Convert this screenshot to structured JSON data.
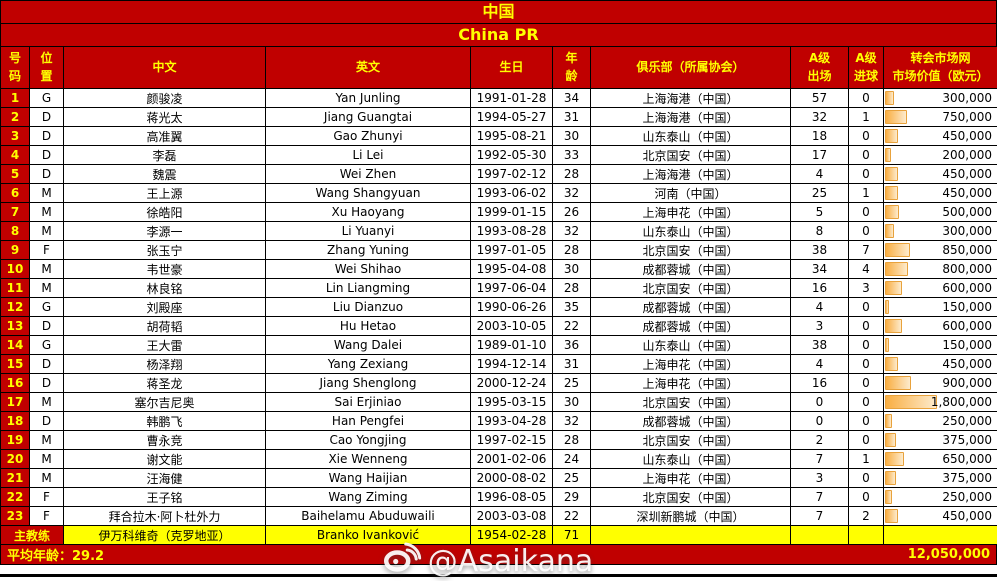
{
  "title": {
    "cn": "中国",
    "en": "China PR"
  },
  "header": {
    "no": "号\n码",
    "pos": "位\n置",
    "cn": "中文",
    "en": "英文",
    "birth": "生日",
    "age": "年\n龄",
    "club": "俱乐部（所属协会）",
    "caps": "A级\n出场",
    "goals": "A级\n进球",
    "value": "转会市场网\n市场价值（欧元）"
  },
  "value_bar_max": 1800000,
  "colors": {
    "red": "#C00000",
    "yellow": "#FFFF00",
    "bar_fill": "#F9AE42",
    "bar_border": "#E8A23C"
  },
  "players": [
    {
      "no": "1",
      "pos": "G",
      "cn": "颜骏凌",
      "en": "Yan Junling",
      "birth": "1991-01-28",
      "age": "34",
      "club": "上海海港（中国）",
      "caps": "57",
      "goals": "0",
      "value": "300,000",
      "value_num": 300000
    },
    {
      "no": "2",
      "pos": "D",
      "cn": "蒋光太",
      "en": "Jiang Guangtai",
      "birth": "1994-05-27",
      "age": "31",
      "club": "上海海港（中国）",
      "caps": "32",
      "goals": "1",
      "value": "750,000",
      "value_num": 750000
    },
    {
      "no": "3",
      "pos": "D",
      "cn": "高准翼",
      "en": "Gao Zhunyi",
      "birth": "1995-08-21",
      "age": "30",
      "club": "山东泰山（中国）",
      "caps": "18",
      "goals": "0",
      "value": "450,000",
      "value_num": 450000
    },
    {
      "no": "4",
      "pos": "D",
      "cn": "李磊",
      "en": "Li Lei",
      "birth": "1992-05-30",
      "age": "33",
      "club": "北京国安（中国）",
      "caps": "17",
      "goals": "0",
      "value": "200,000",
      "value_num": 200000
    },
    {
      "no": "5",
      "pos": "D",
      "cn": "魏震",
      "en": "Wei Zhen",
      "birth": "1997-02-12",
      "age": "28",
      "club": "上海海港（中国）",
      "caps": "4",
      "goals": "0",
      "value": "450,000",
      "value_num": 450000
    },
    {
      "no": "6",
      "pos": "M",
      "cn": "王上源",
      "en": "Wang Shangyuan",
      "birth": "1993-06-02",
      "age": "32",
      "club": "河南（中国）",
      "caps": "25",
      "goals": "1",
      "value": "450,000",
      "value_num": 450000
    },
    {
      "no": "7",
      "pos": "M",
      "cn": "徐皓阳",
      "en": "Xu Haoyang",
      "birth": "1999-01-15",
      "age": "26",
      "club": "上海申花（中国）",
      "caps": "5",
      "goals": "0",
      "value": "500,000",
      "value_num": 500000
    },
    {
      "no": "8",
      "pos": "M",
      "cn": "李源一",
      "en": "Li Yuanyi",
      "birth": "1993-08-28",
      "age": "32",
      "club": "山东泰山（中国）",
      "caps": "8",
      "goals": "0",
      "value": "300,000",
      "value_num": 300000
    },
    {
      "no": "9",
      "pos": "F",
      "cn": "张玉宁",
      "en": "Zhang Yuning",
      "birth": "1997-01-05",
      "age": "28",
      "club": "北京国安（中国）",
      "caps": "38",
      "goals": "7",
      "value": "850,000",
      "value_num": 850000
    },
    {
      "no": "10",
      "pos": "M",
      "cn": "韦世豪",
      "en": "Wei Shihao",
      "birth": "1995-04-08",
      "age": "30",
      "club": "成都蓉城（中国）",
      "caps": "34",
      "goals": "4",
      "value": "800,000",
      "value_num": 800000
    },
    {
      "no": "11",
      "pos": "M",
      "cn": "林良铭",
      "en": "Lin Liangming",
      "birth": "1997-06-04",
      "age": "28",
      "club": "北京国安（中国）",
      "caps": "16",
      "goals": "3",
      "value": "600,000",
      "value_num": 600000
    },
    {
      "no": "12",
      "pos": "G",
      "cn": "刘殿座",
      "en": "Liu Dianzuo",
      "birth": "1990-06-26",
      "age": "35",
      "club": "成都蓉城（中国）",
      "caps": "4",
      "goals": "0",
      "value": "150,000",
      "value_num": 150000
    },
    {
      "no": "13",
      "pos": "D",
      "cn": "胡荷韬",
      "en": "Hu Hetao",
      "birth": "2003-10-05",
      "age": "22",
      "club": "成都蓉城（中国）",
      "caps": "3",
      "goals": "0",
      "value": "600,000",
      "value_num": 600000
    },
    {
      "no": "14",
      "pos": "G",
      "cn": "王大雷",
      "en": "Wang Dalei",
      "birth": "1989-01-10",
      "age": "36",
      "club": "山东泰山（中国）",
      "caps": "38",
      "goals": "0",
      "value": "150,000",
      "value_num": 150000
    },
    {
      "no": "15",
      "pos": "D",
      "cn": "杨泽翔",
      "en": "Yang Zexiang",
      "birth": "1994-12-14",
      "age": "31",
      "club": "上海申花（中国）",
      "caps": "4",
      "goals": "0",
      "value": "450,000",
      "value_num": 450000
    },
    {
      "no": "16",
      "pos": "D",
      "cn": "蒋圣龙",
      "en": "Jiang Shenglong",
      "birth": "2000-12-24",
      "age": "25",
      "club": "上海申花（中国）",
      "caps": "16",
      "goals": "0",
      "value": "900,000",
      "value_num": 900000
    },
    {
      "no": "17",
      "pos": "M",
      "cn": "塞尔吉尼奥",
      "en": "Sai Erjiniao",
      "birth": "1995-03-15",
      "age": "30",
      "club": "北京国安（中国）",
      "caps": "0",
      "goals": "0",
      "value": "1,800,000",
      "value_num": 1800000
    },
    {
      "no": "18",
      "pos": "D",
      "cn": "韩鹏飞",
      "en": "Han Pengfei",
      "birth": "1993-04-28",
      "age": "32",
      "club": "成都蓉城（中国）",
      "caps": "0",
      "goals": "0",
      "value": "250,000",
      "value_num": 250000
    },
    {
      "no": "19",
      "pos": "M",
      "cn": "曹永竞",
      "en": "Cao Yongjing",
      "birth": "1997-02-15",
      "age": "28",
      "club": "北京国安（中国）",
      "caps": "2",
      "goals": "0",
      "value": "375,000",
      "value_num": 375000
    },
    {
      "no": "20",
      "pos": "M",
      "cn": "谢文能",
      "en": "Xie Wenneng",
      "birth": "2001-02-06",
      "age": "24",
      "club": "山东泰山（中国）",
      "caps": "7",
      "goals": "1",
      "value": "650,000",
      "value_num": 650000
    },
    {
      "no": "21",
      "pos": "M",
      "cn": "汪海健",
      "en": "Wang Haijian",
      "birth": "2000-08-02",
      "age": "25",
      "club": "上海申花（中国）",
      "caps": "3",
      "goals": "0",
      "value": "375,000",
      "value_num": 375000
    },
    {
      "no": "22",
      "pos": "F",
      "cn": "王子铭",
      "en": "Wang Ziming",
      "birth": "1996-08-05",
      "age": "29",
      "club": "北京国安（中国）",
      "caps": "7",
      "goals": "0",
      "value": "250,000",
      "value_num": 250000
    },
    {
      "no": "23",
      "pos": "F",
      "cn": "拜合拉木·阿卜杜外力",
      "en": "Baihelamu Abuduwaili",
      "birth": "2003-03-08",
      "age": "22",
      "club": "深圳新鹏城（中国）",
      "caps": "7",
      "goals": "2",
      "value": "450,000",
      "value_num": 450000
    }
  ],
  "coach": {
    "label": "主教练",
    "cn": "伊万科维奇（克罗地亚）",
    "en": "Branko Ivanković",
    "birth": "1954-02-28",
    "age": "71"
  },
  "summary": {
    "avg_age_label": "平均年龄：",
    "avg_age_value": "29.2",
    "total_value": "12,050,000"
  },
  "watermark": {
    "handle": "@Asaikana",
    "icon": "weibo-icon"
  }
}
